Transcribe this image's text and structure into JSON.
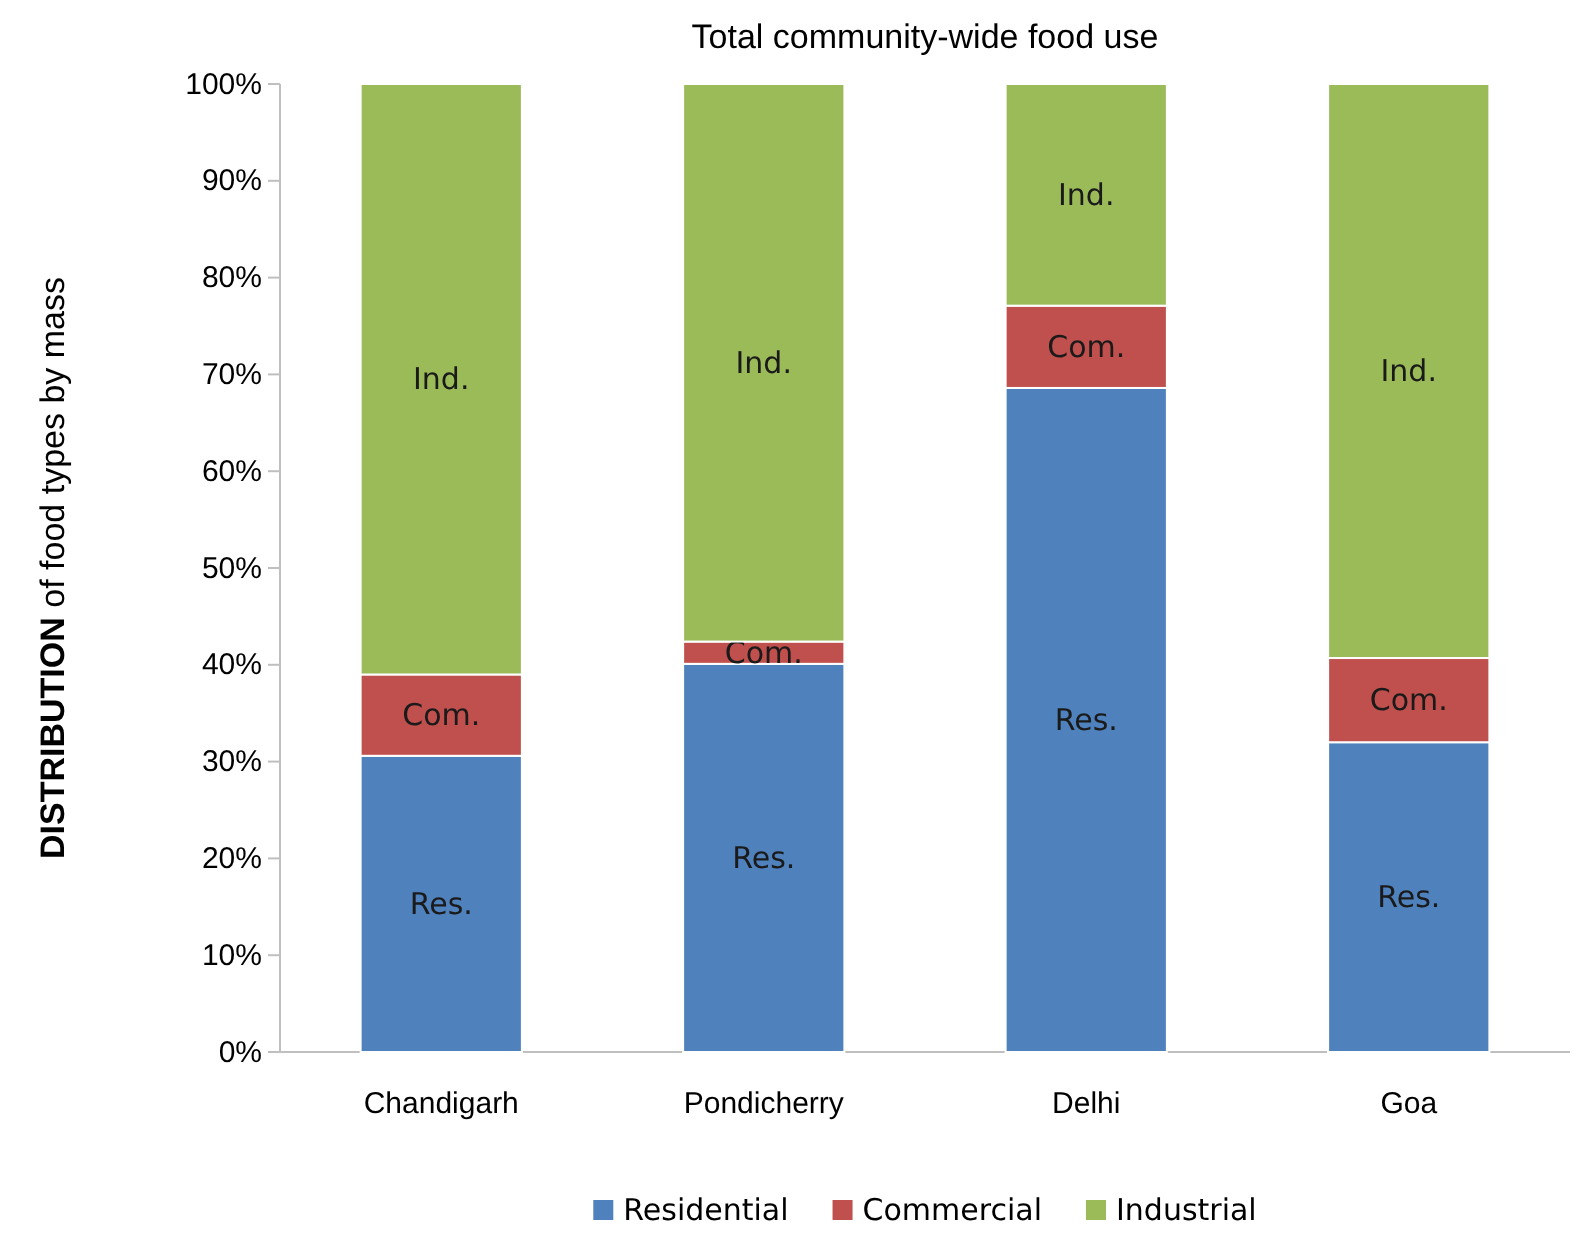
{
  "chart_data": {
    "type": "bar",
    "title": "Total community-wide food use",
    "ylabel": "DISTRIBUTION of food types by mass",
    "categories": [
      "Chandigarh",
      "Pondicherry",
      "Delhi",
      "Goa"
    ],
    "stacked": true,
    "legend": "bottom",
    "grid": false,
    "ylim": [
      0,
      100
    ],
    "yticks": [
      {
        "value": 0,
        "label": "0%"
      },
      {
        "value": 10,
        "label": "10%"
      },
      {
        "value": 20,
        "label": "20%"
      },
      {
        "value": 30,
        "label": "30%"
      },
      {
        "value": 40,
        "label": "40%"
      },
      {
        "value": 50,
        "label": "50%"
      },
      {
        "value": 60,
        "label": "60%"
      },
      {
        "value": 70,
        "label": "70%"
      },
      {
        "value": 80,
        "label": "80%"
      },
      {
        "value": 90,
        "label": "90%"
      },
      {
        "value": 100,
        "label": "100%"
      }
    ],
    "series": [
      {
        "name": "Residential",
        "color": "#4f81bd",
        "values": [
          30.6,
          40.1,
          68.6,
          32.0
        ],
        "value_labels": [
          "Res.",
          "Res.",
          "Res.",
          "Res."
        ]
      },
      {
        "name": "Commercial",
        "color": "#c0504d",
        "values": [
          8.4,
          2.3,
          8.5,
          8.7
        ],
        "value_labels": [
          "Com.",
          "Com.",
          "Com.",
          "Com."
        ]
      },
      {
        "name": "Industrial",
        "color": "#9bbb59",
        "values": [
          61.0,
          57.6,
          22.9,
          59.3
        ],
        "value_labels": [
          "Ind.",
          "Ind.",
          "Ind.",
          "Ind."
        ]
      }
    ]
  }
}
